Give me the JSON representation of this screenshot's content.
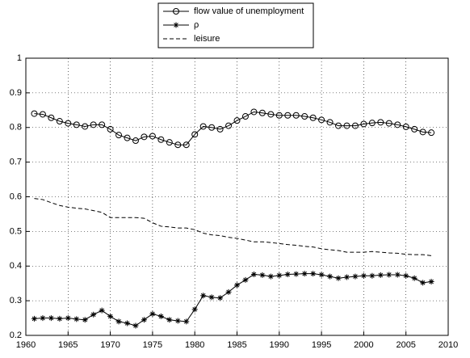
{
  "chart_data": {
    "type": "line",
    "x": [
      1961,
      1962,
      1963,
      1964,
      1965,
      1966,
      1967,
      1968,
      1969,
      1970,
      1971,
      1972,
      1973,
      1974,
      1975,
      1976,
      1977,
      1978,
      1979,
      1980,
      1981,
      1982,
      1983,
      1984,
      1985,
      1986,
      1987,
      1988,
      1989,
      1990,
      1991,
      1992,
      1993,
      1994,
      1995,
      1996,
      1997,
      1998,
      1999,
      2000,
      2001,
      2002,
      2003,
      2004,
      2005,
      2006,
      2007,
      2008
    ],
    "series": [
      {
        "name": "flow value of unemployment",
        "color": "#000000",
        "marker": "circle",
        "linestyle": "solid",
        "values": [
          0.84,
          0.838,
          0.828,
          0.818,
          0.812,
          0.808,
          0.803,
          0.808,
          0.808,
          0.795,
          0.778,
          0.77,
          0.762,
          0.773,
          0.775,
          0.765,
          0.757,
          0.75,
          0.75,
          0.78,
          0.803,
          0.8,
          0.795,
          0.805,
          0.82,
          0.832,
          0.845,
          0.842,
          0.838,
          0.835,
          0.835,
          0.835,
          0.832,
          0.828,
          0.822,
          0.815,
          0.805,
          0.805,
          0.805,
          0.81,
          0.813,
          0.815,
          0.812,
          0.808,
          0.802,
          0.795,
          0.787,
          0.785
        ]
      },
      {
        "name": "ρ",
        "color": "#000000",
        "marker": "star",
        "linestyle": "solid",
        "values": [
          0.248,
          0.25,
          0.25,
          0.248,
          0.25,
          0.247,
          0.245,
          0.26,
          0.272,
          0.255,
          0.24,
          0.235,
          0.228,
          0.245,
          0.262,
          0.255,
          0.245,
          0.242,
          0.24,
          0.275,
          0.315,
          0.31,
          0.308,
          0.325,
          0.345,
          0.36,
          0.376,
          0.374,
          0.37,
          0.373,
          0.376,
          0.377,
          0.378,
          0.378,
          0.375,
          0.37,
          0.365,
          0.368,
          0.37,
          0.372,
          0.372,
          0.374,
          0.375,
          0.375,
          0.372,
          0.365,
          0.352,
          0.355
        ]
      },
      {
        "name": "leisure",
        "color": "#000000",
        "marker": null,
        "linestyle": "dashed",
        "values": [
          0.595,
          0.592,
          0.583,
          0.575,
          0.57,
          0.567,
          0.565,
          0.56,
          0.555,
          0.54,
          0.54,
          0.54,
          0.54,
          0.538,
          0.525,
          0.515,
          0.513,
          0.51,
          0.51,
          0.505,
          0.495,
          0.49,
          0.488,
          0.483,
          0.48,
          0.475,
          0.47,
          0.47,
          0.468,
          0.465,
          0.462,
          0.46,
          0.457,
          0.455,
          0.45,
          0.447,
          0.445,
          0.44,
          0.44,
          0.44,
          0.442,
          0.44,
          0.438,
          0.437,
          0.434,
          0.433,
          0.433,
          0.43
        ]
      }
    ],
    "xlim": [
      1960,
      2010
    ],
    "xticks": [
      1960,
      1965,
      1970,
      1975,
      1980,
      1985,
      1990,
      1995,
      2000,
      2005,
      2010
    ],
    "ylim": [
      0.2,
      1
    ],
    "yticks": [
      0.2,
      0.3,
      0.4,
      0.5,
      0.6,
      0.7,
      0.8,
      0.9,
      1
    ],
    "grid": true,
    "legend": "top"
  }
}
